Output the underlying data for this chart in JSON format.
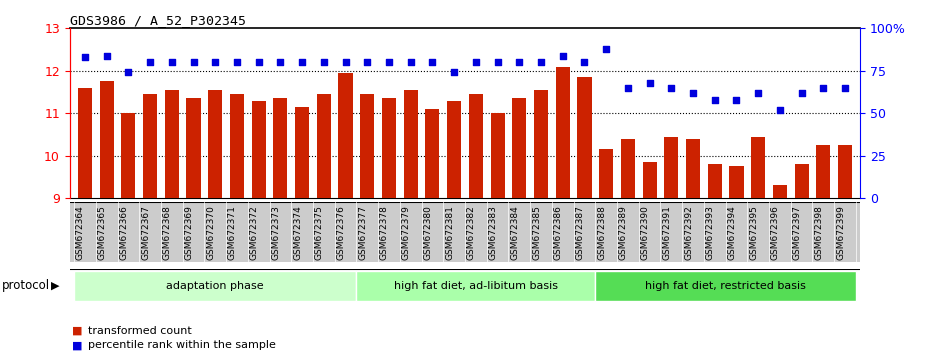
{
  "title": "GDS3986 / A_52_P302345",
  "samples": [
    "GSM672364",
    "GSM672365",
    "GSM672366",
    "GSM672367",
    "GSM672368",
    "GSM672369",
    "GSM672370",
    "GSM672371",
    "GSM672372",
    "GSM672373",
    "GSM672374",
    "GSM672375",
    "GSM672376",
    "GSM672377",
    "GSM672378",
    "GSM672379",
    "GSM672380",
    "GSM672381",
    "GSM672382",
    "GSM672383",
    "GSM672384",
    "GSM672385",
    "GSM672386",
    "GSM672387",
    "GSM672388",
    "GSM672389",
    "GSM672390",
    "GSM672391",
    "GSM672392",
    "GSM672393",
    "GSM672394",
    "GSM672395",
    "GSM672396",
    "GSM672397",
    "GSM672398",
    "GSM672399"
  ],
  "bar_values": [
    11.6,
    11.75,
    11.0,
    11.45,
    11.55,
    11.35,
    11.55,
    11.45,
    11.3,
    11.35,
    11.15,
    11.45,
    11.95,
    11.45,
    11.35,
    11.55,
    11.1,
    11.3,
    11.45,
    11.0,
    11.35,
    11.55,
    12.1,
    11.85,
    10.15,
    10.4,
    9.85,
    10.45,
    10.4,
    9.8,
    9.75,
    10.45,
    9.3,
    9.8,
    10.25,
    10.25
  ],
  "dot_values": [
    83,
    84,
    74,
    80,
    80,
    80,
    80,
    80,
    80,
    80,
    80,
    80,
    80,
    80,
    80,
    80,
    80,
    74,
    80,
    80,
    80,
    80,
    84,
    80,
    88,
    65,
    68,
    65,
    62,
    58,
    58,
    62,
    52,
    62,
    65,
    65
  ],
  "group_labels": [
    "adaptation phase",
    "high fat diet, ad-libitum basis",
    "high fat diet, restricted basis"
  ],
  "group_starts": [
    0,
    13,
    24
  ],
  "group_ends": [
    13,
    24,
    36
  ],
  "group_colors": [
    "#ccffcc",
    "#aaffaa",
    "#55dd55"
  ],
  "bar_color": "#cc2200",
  "dot_color": "#0000dd",
  "ylim_left": [
    9,
    13
  ],
  "ylim_right": [
    0,
    100
  ],
  "yticks_left": [
    9,
    10,
    11,
    12,
    13
  ],
  "yticks_right": [
    0,
    25,
    50,
    75,
    100
  ],
  "ytick_labels_right": [
    "0",
    "25",
    "50",
    "75",
    "100%"
  ],
  "protocol_label": "protocol",
  "legend_bar": "transformed count",
  "legend_dot": "percentile rank within the sample",
  "bg_color": "#ffffff",
  "tick_area_color": "#cccccc",
  "gridline_color": "#000000",
  "top_spine_color": "#000000"
}
